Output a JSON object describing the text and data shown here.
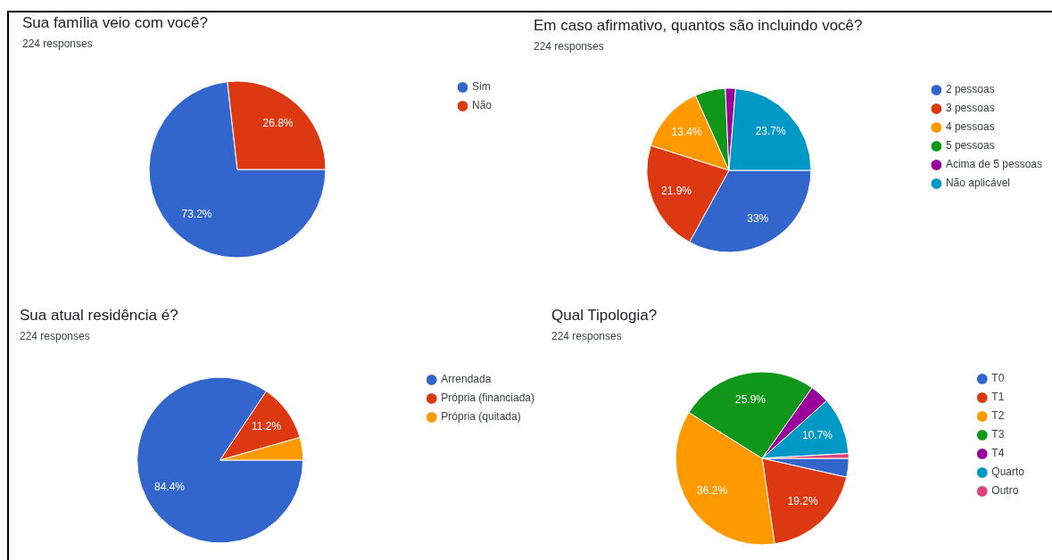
{
  "chart_data": [
    {
      "type": "pie",
      "title": "Sua família veio com você?",
      "subtitle": "224 responses",
      "categories": [
        "Sim",
        "Não"
      ],
      "values": [
        73.2,
        26.8
      ],
      "colors": [
        "#3366cc",
        "#dc3912"
      ],
      "value_labels": [
        "73.2%",
        "26.8%"
      ],
      "legend": "right"
    },
    {
      "type": "pie",
      "title": "Em caso afirmativo, quantos são incluindo você?",
      "subtitle": "224 responses",
      "categories": [
        "2 pessoas",
        "3 pessoas",
        "4 pessoas",
        "5 pessoas",
        "Acima de 5 pessoas",
        "Não aplicável"
      ],
      "values": [
        33,
        21.9,
        13.4,
        6.0,
        2.0,
        23.7
      ],
      "colors": [
        "#3366cc",
        "#dc3912",
        "#ff9900",
        "#109618",
        "#990099",
        "#0099c6"
      ],
      "value_labels": [
        "33%",
        "21.9%",
        "13.4%",
        null,
        null,
        "23.7%"
      ],
      "legend": "right"
    },
    {
      "type": "pie",
      "title": "Sua atual residência é?",
      "subtitle": "224 responses",
      "categories": [
        "Arrendada",
        "Própria (financiada)",
        "Própria (quitada)"
      ],
      "values": [
        84.4,
        11.2,
        4.4
      ],
      "colors": [
        "#3366cc",
        "#dc3912",
        "#ff9900"
      ],
      "value_labels": [
        "84.4%",
        "11.2%",
        null
      ],
      "legend": "right"
    },
    {
      "type": "pie",
      "title": "Qual Tipologia?",
      "subtitle": "224 responses",
      "categories": [
        "T0",
        "T1",
        "T2",
        "T3",
        "T4",
        "Quarto",
        "Outro"
      ],
      "values": [
        3.5,
        19.2,
        36.2,
        25.9,
        3.6,
        10.7,
        0.9
      ],
      "colors": [
        "#3366cc",
        "#dc3912",
        "#ff9900",
        "#109618",
        "#990099",
        "#0099c6",
        "#dd4477"
      ],
      "value_labels": [
        null,
        "19.2%",
        "36.2%",
        "25.9%",
        null,
        "10.7%",
        null
      ],
      "legend": "right"
    }
  ]
}
